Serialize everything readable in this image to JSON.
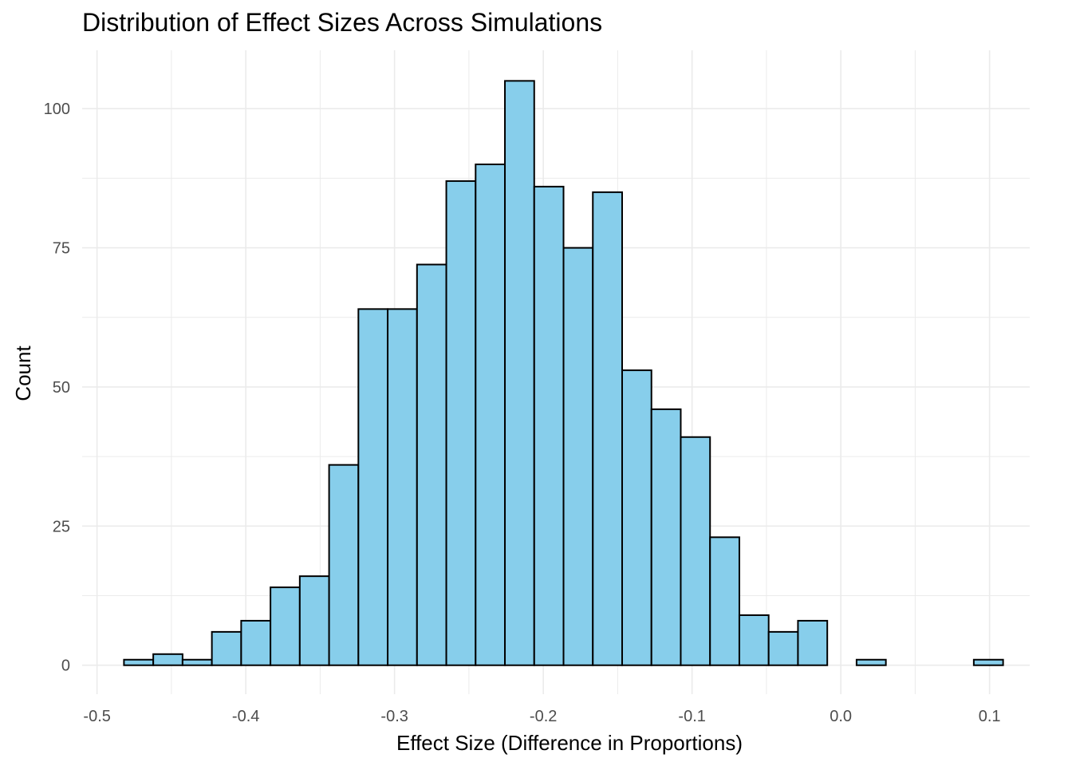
{
  "chart_data": {
    "type": "bar",
    "subtype": "histogram",
    "title": "Distribution of Effect Sizes Across Simulations",
    "xlabel": "Effect Size (Difference in Proportions)",
    "ylabel": "Count",
    "bin_width": 0.0197,
    "first_bin_start": -0.4819,
    "counts": [
      1,
      2,
      1,
      6,
      8,
      14,
      16,
      36,
      64,
      64,
      72,
      87,
      90,
      105,
      86,
      75,
      85,
      53,
      46,
      41,
      23,
      9,
      6,
      8,
      0,
      1,
      0,
      0,
      0,
      1
    ],
    "xlim": [
      -0.51,
      0.127
    ],
    "ylim": [
      -5.2,
      110.5
    ],
    "x_ticks": [
      -0.5,
      -0.4,
      -0.3,
      -0.2,
      -0.1,
      0.0,
      0.1
    ],
    "x_tick_labels": [
      "-0.5",
      "-0.4",
      "-0.3",
      "-0.2",
      "-0.1",
      "0.0",
      "0.1"
    ],
    "y_ticks": [
      0,
      25,
      50,
      75,
      100
    ],
    "y_tick_labels": [
      "0",
      "25",
      "50",
      "75",
      "100"
    ],
    "grid": true,
    "legend": "none",
    "colors": {
      "fill": "#87CEEB",
      "outline": "#000000",
      "grid": "#ebebeb"
    }
  }
}
